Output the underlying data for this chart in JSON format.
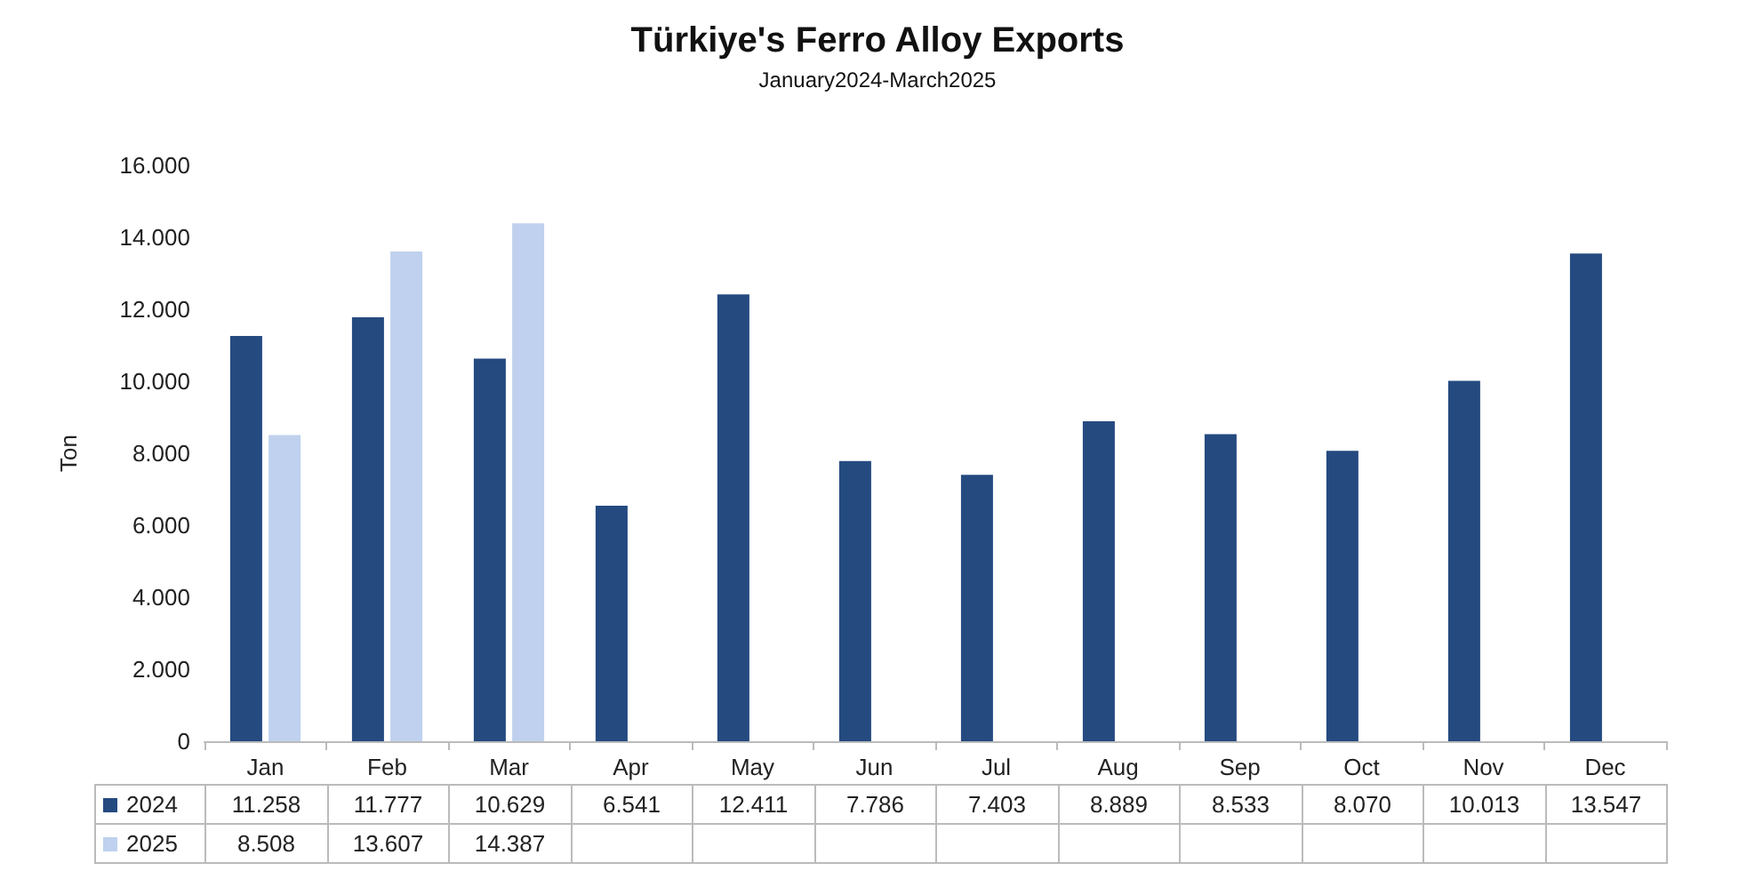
{
  "chart_data": {
    "type": "bar",
    "title": "Türkiye's Ferro Alloy Exports",
    "subtitle": "January2024-March2025",
    "ylabel": "Ton",
    "categories": [
      "Jan",
      "Feb",
      "Mar",
      "Apr",
      "May",
      "Jun",
      "Jul",
      "Aug",
      "Sep",
      "Oct",
      "Nov",
      "Dec"
    ],
    "series": [
      {
        "name": "2024",
        "color": "#244a80",
        "values": [
          11258,
          11777,
          10629,
          6541,
          12411,
          7786,
          7403,
          8889,
          8533,
          8070,
          10013,
          13547
        ],
        "value_labels": [
          "11.258",
          "11.777",
          "10.629",
          "6.541",
          "12.411",
          "7.786",
          "7.403",
          "8.889",
          "8.533",
          "8.070",
          "10.013",
          "13.547"
        ]
      },
      {
        "name": "2025",
        "color": "#bfd1ee",
        "values": [
          8508,
          13607,
          14387,
          null,
          null,
          null,
          null,
          null,
          null,
          null,
          null,
          null
        ],
        "value_labels": [
          "8.508",
          "13.607",
          "14.387",
          null,
          null,
          null,
          null,
          null,
          null,
          null,
          null,
          null
        ]
      }
    ],
    "ylim": [
      0,
      16000
    ],
    "yticks": [
      {
        "value": 0,
        "label": "0"
      },
      {
        "value": 2000,
        "label": "2.000"
      },
      {
        "value": 4000,
        "label": "4.000"
      },
      {
        "value": 6000,
        "label": "6.000"
      },
      {
        "value": 8000,
        "label": "8.000"
      },
      {
        "value": 10000,
        "label": "10.000"
      },
      {
        "value": 12000,
        "label": "12.000"
      },
      {
        "value": 14000,
        "label": "14.000"
      },
      {
        "value": 16000,
        "label": "16.000"
      }
    ],
    "grid": false,
    "legend": "bottom"
  }
}
